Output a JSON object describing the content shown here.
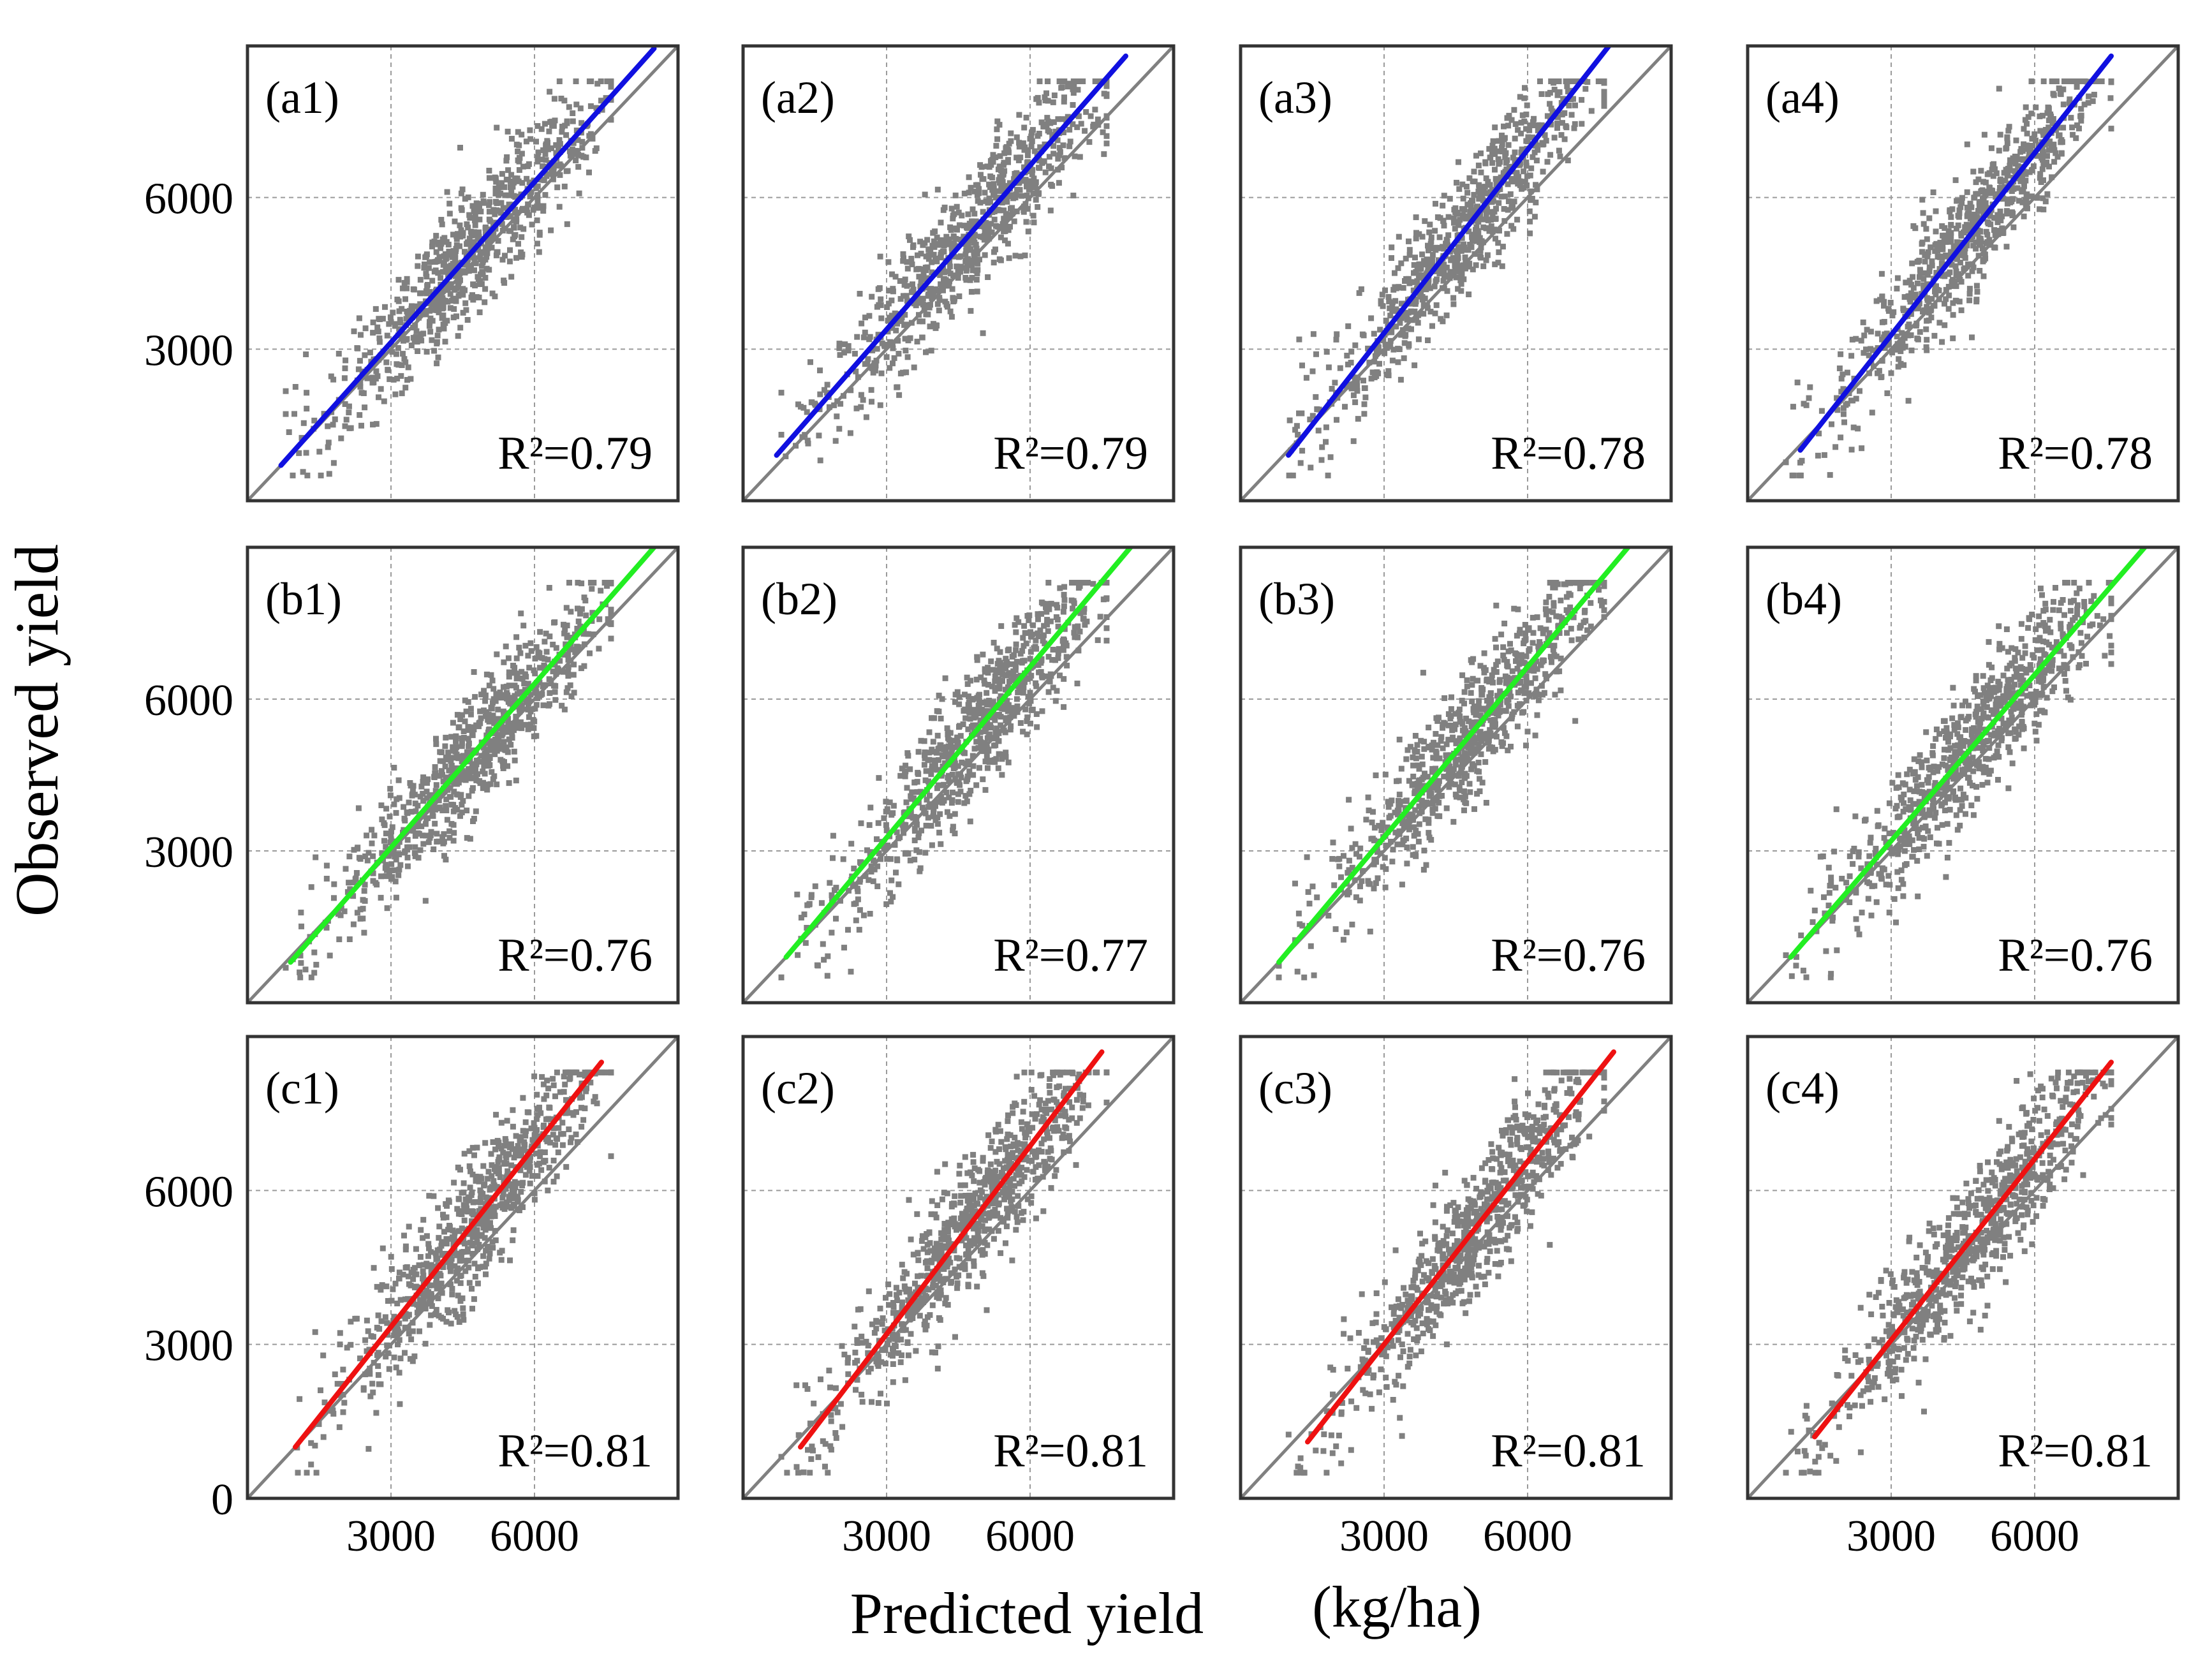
{
  "figure": {
    "xlabel": "Predicted yield",
    "unit": "(kg/ha)",
    "ylabel": "Observed yield",
    "colors": {
      "axis": "#333333",
      "grid": "#9a9a9a",
      "points": "#808080",
      "one_to_one": "#808080",
      "row_a": "#1010e0",
      "row_b": "#22ee22",
      "row_c": "#ee1111"
    }
  },
  "chart_data": [
    {
      "id": "a1",
      "panel_label": "(a1)",
      "r2_label": "R²=0.79",
      "type": "scatter",
      "series_color": "row_a",
      "fit": {
        "x_start": 700,
        "y_start": 700,
        "x_end": 8500,
        "y_end": 8950
      },
      "xlim": [
        0,
        9000
      ],
      "ylim": [
        0,
        9000
      ],
      "xticks": [
        3000,
        6000
      ],
      "yticks": [
        3000,
        6000
      ],
      "y_tick_labels": [
        "3000",
        "6000"
      ],
      "x_tick_labels": [],
      "seed": 11
    },
    {
      "id": "a2",
      "panel_label": "(a2)",
      "r2_label": "R²=0.79",
      "type": "scatter",
      "series_color": "row_a",
      "fit": {
        "x_start": 700,
        "y_start": 900,
        "x_end": 8000,
        "y_end": 8800
      },
      "xlim": [
        0,
        9000
      ],
      "ylim": [
        0,
        9000
      ],
      "xticks": [
        3000,
        6000
      ],
      "yticks": [
        3000,
        6000
      ],
      "y_tick_labels": [],
      "x_tick_labels": [],
      "seed": 23
    },
    {
      "id": "a3",
      "panel_label": "(a3)",
      "r2_label": "R²=0.78",
      "type": "scatter",
      "series_color": "row_a",
      "fit": {
        "x_start": 1000,
        "y_start": 900,
        "x_end": 7700,
        "y_end": 9000
      },
      "xlim": [
        0,
        9000
      ],
      "ylim": [
        0,
        9000
      ],
      "xticks": [
        3000,
        6000
      ],
      "yticks": [
        3000,
        6000
      ],
      "y_tick_labels": [],
      "x_tick_labels": [],
      "seed": 37
    },
    {
      "id": "a4",
      "panel_label": "(a4)",
      "r2_label": "R²=0.78",
      "type": "scatter",
      "series_color": "row_a",
      "fit": {
        "x_start": 1100,
        "y_start": 1000,
        "x_end": 7600,
        "y_end": 8800
      },
      "xlim": [
        0,
        9000
      ],
      "ylim": [
        0,
        9000
      ],
      "xticks": [
        3000,
        6000
      ],
      "yticks": [
        3000,
        6000
      ],
      "y_tick_labels": [],
      "x_tick_labels": [],
      "seed": 41
    },
    {
      "id": "b1",
      "panel_label": "(b1)",
      "r2_label": "R²=0.76",
      "type": "scatter",
      "series_color": "row_b",
      "fit": {
        "x_start": 900,
        "y_start": 800,
        "x_end": 8500,
        "y_end": 9000
      },
      "xlim": [
        0,
        9000
      ],
      "ylim": [
        0,
        9000
      ],
      "xticks": [
        3000,
        6000
      ],
      "yticks": [
        3000,
        6000
      ],
      "y_tick_labels": [
        "3000",
        "6000"
      ],
      "x_tick_labels": [],
      "seed": 53
    },
    {
      "id": "b2",
      "panel_label": "(b2)",
      "r2_label": "R²=0.77",
      "type": "scatter",
      "series_color": "row_b",
      "fit": {
        "x_start": 900,
        "y_start": 900,
        "x_end": 8100,
        "y_end": 9000
      },
      "xlim": [
        0,
        9000
      ],
      "ylim": [
        0,
        9000
      ],
      "xticks": [
        3000,
        6000
      ],
      "yticks": [
        3000,
        6000
      ],
      "y_tick_labels": [],
      "x_tick_labels": [],
      "seed": 67
    },
    {
      "id": "b3",
      "panel_label": "(b3)",
      "r2_label": "R²=0.76",
      "type": "scatter",
      "series_color": "row_b",
      "fit": {
        "x_start": 800,
        "y_start": 800,
        "x_end": 8100,
        "y_end": 9000
      },
      "xlim": [
        0,
        9000
      ],
      "ylim": [
        0,
        9000
      ],
      "xticks": [
        3000,
        6000
      ],
      "yticks": [
        3000,
        6000
      ],
      "y_tick_labels": [],
      "x_tick_labels": [],
      "seed": 71
    },
    {
      "id": "b4",
      "panel_label": "(b4)",
      "r2_label": "R²=0.76",
      "type": "scatter",
      "series_color": "row_b",
      "fit": {
        "x_start": 900,
        "y_start": 900,
        "x_end": 8300,
        "y_end": 9000
      },
      "xlim": [
        0,
        9000
      ],
      "ylim": [
        0,
        9000
      ],
      "xticks": [
        3000,
        6000
      ],
      "yticks": [
        3000,
        6000
      ],
      "y_tick_labels": [],
      "x_tick_labels": [],
      "seed": 83
    },
    {
      "id": "c1",
      "panel_label": "(c1)",
      "r2_label": "R²=0.81",
      "type": "scatter",
      "series_color": "row_c",
      "fit": {
        "x_start": 1000,
        "y_start": 1000,
        "x_end": 7400,
        "y_end": 8500
      },
      "xlim": [
        0,
        9000
      ],
      "ylim": [
        0,
        9000
      ],
      "xticks": [
        3000,
        6000
      ],
      "yticks": [
        0,
        3000,
        6000
      ],
      "y_tick_labels": [
        "0",
        "3000",
        "6000"
      ],
      "x_tick_labels": [
        "3000",
        "6000"
      ],
      "seed": 97
    },
    {
      "id": "c2",
      "panel_label": "(c2)",
      "r2_label": "R²=0.81",
      "type": "scatter",
      "series_color": "row_c",
      "fit": {
        "x_start": 1200,
        "y_start": 1000,
        "x_end": 7500,
        "y_end": 8700
      },
      "xlim": [
        0,
        9000
      ],
      "ylim": [
        0,
        9000
      ],
      "xticks": [
        3000,
        6000
      ],
      "yticks": [
        3000,
        6000
      ],
      "y_tick_labels": [],
      "x_tick_labels": [
        "3000",
        "6000"
      ],
      "seed": 101
    },
    {
      "id": "c3",
      "panel_label": "(c3)",
      "r2_label": "R²=0.81",
      "type": "scatter",
      "series_color": "row_c",
      "fit": {
        "x_start": 1400,
        "y_start": 1100,
        "x_end": 7800,
        "y_end": 8700
      },
      "xlim": [
        0,
        9000
      ],
      "ylim": [
        0,
        9000
      ],
      "xticks": [
        3000,
        6000
      ],
      "yticks": [
        3000,
        6000
      ],
      "y_tick_labels": [],
      "x_tick_labels": [
        "3000",
        "6000"
      ],
      "seed": 113
    },
    {
      "id": "c4",
      "panel_label": "(c4)",
      "r2_label": "R²=0.81",
      "type": "scatter",
      "series_color": "row_c",
      "fit": {
        "x_start": 1400,
        "y_start": 1200,
        "x_end": 7600,
        "y_end": 8500
      },
      "xlim": [
        0,
        9000
      ],
      "ylim": [
        0,
        9000
      ],
      "xticks": [
        3000,
        6000
      ],
      "yticks": [
        3000,
        6000
      ],
      "y_tick_labels": [],
      "x_tick_labels": [
        "3000",
        "6000"
      ],
      "seed": 127
    }
  ]
}
